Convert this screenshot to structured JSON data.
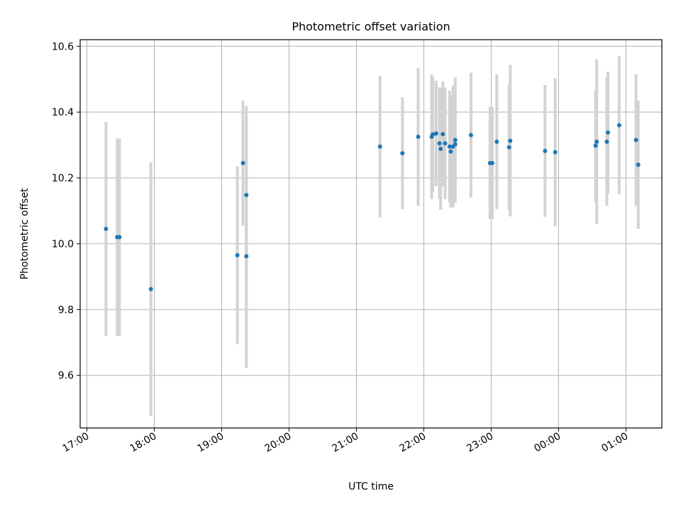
{
  "chart_data": {
    "type": "scatter",
    "title": "Photometric offset variation",
    "xlabel": "UTC time",
    "ylabel": "Photometric offset",
    "grid": true,
    "x_tick_labels": [
      "17:00",
      "18:00",
      "19:00",
      "20:00",
      "21:00",
      "22:00",
      "23:00",
      "00:00",
      "01:00"
    ],
    "y_tick_labels": [
      "9.6",
      "9.8",
      "10.0",
      "10.2",
      "10.4",
      "10.6"
    ],
    "y_ticks": [
      9.6,
      9.8,
      10.0,
      10.2,
      10.4,
      10.6
    ],
    "xlim": [
      "16:54",
      "01:32"
    ],
    "ylim": [
      9.44,
      10.62
    ],
    "colors": {
      "point": "#1f77b4",
      "errorbar": "#d3d3d3",
      "grid": "#b0b0b0"
    },
    "x": [
      "17:17",
      "17:27",
      "17:29",
      "17:57",
      "19:14",
      "19:19",
      "19:22",
      "19:22",
      "21:21",
      "21:41",
      "21:55",
      "22:07",
      "22:08",
      "22:11",
      "22:14",
      "22:15",
      "22:17",
      "22:19",
      "22:23",
      "22:24",
      "22:26",
      "22:28",
      "22:28",
      "22:42",
      "22:59",
      "23:01",
      "23:05",
      "23:16",
      "23:17",
      "23:48",
      "23:57",
      "00:33",
      "00:34",
      "00:43",
      "00:44",
      "00:54",
      "01:09",
      "01:11"
    ],
    "y": [
      10.045,
      10.02,
      10.02,
      9.862,
      9.965,
      10.245,
      9.962,
      10.148,
      10.295,
      10.275,
      10.325,
      10.325,
      10.332,
      10.335,
      10.305,
      10.288,
      10.333,
      10.305,
      10.295,
      10.28,
      10.295,
      10.315,
      10.302,
      10.33,
      10.245,
      10.245,
      10.31,
      10.293,
      10.313,
      10.282,
      10.278,
      10.298,
      10.31,
      10.31,
      10.338,
      10.36,
      10.315,
      10.24
    ],
    "err": [
      0.325,
      0.3,
      0.3,
      0.385,
      0.27,
      0.19,
      0.34,
      0.27,
      0.215,
      0.17,
      0.21,
      0.19,
      0.175,
      0.16,
      0.17,
      0.185,
      0.16,
      0.17,
      0.17,
      0.17,
      0.185,
      0.19,
      0.165,
      0.19,
      0.17,
      0.17,
      0.205,
      0.19,
      0.23,
      0.2,
      0.225,
      0.17,
      0.25,
      0.195,
      0.185,
      0.21,
      0.2,
      0.195
    ]
  }
}
